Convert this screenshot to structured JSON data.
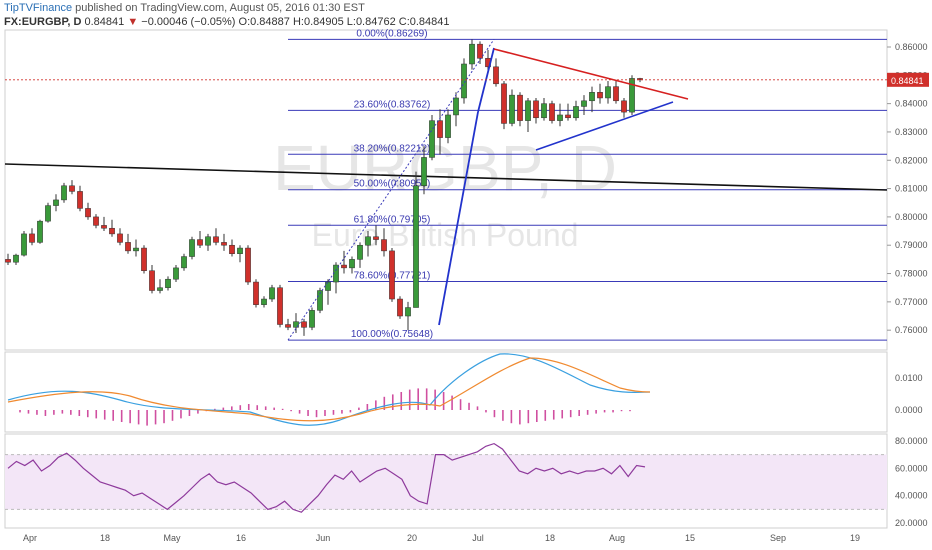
{
  "header": {
    "brand": "TipTVFinance",
    "published": "published on TradingView.com, August 05, 2016 01:30 EST",
    "symbol": "FX:EURGBP, D",
    "last": "0.84841",
    "arrow": "▼",
    "change": "−0.00046 (−0.05%)",
    "ohlc": "O:0.84887 H:0.84905 L:0.84762 C:0.84841"
  },
  "watermark": {
    "symbol": "EURGBP, D",
    "name": "Euro British Pound"
  },
  "price_label": "0.84841",
  "chart_data": [
    {
      "type": "candlestick",
      "ylim": [
        0.753,
        0.866
      ],
      "y_ticks": [
        "0.86000",
        "0.85000",
        "0.84000",
        "0.83000",
        "0.82000",
        "0.81000",
        "0.80000",
        "0.79000",
        "0.78000",
        "0.77000",
        "0.76000"
      ],
      "x_ticks": [
        "Apr",
        "18",
        "May",
        "16",
        "Jun",
        "20",
        "Jul",
        "18",
        "Aug",
        "15",
        "Sep",
        "19"
      ],
      "fib_levels": [
        {
          "label": "0.00%(0.86269)",
          "value": 0.86269
        },
        {
          "label": "23.60%(0.83762)",
          "value": 0.83762
        },
        {
          "label": "38.20%(0.82212)",
          "value": 0.82212
        },
        {
          "label": "50.00%(0.80959)",
          "value": 0.80959
        },
        {
          "label": "61.80%(0.79705)",
          "value": 0.79705
        },
        {
          "label": "78.60%(0.77721)",
          "value": 0.77721
        },
        {
          "label": "100.00%(0.75648)",
          "value": 0.75648
        }
      ],
      "candles": [
        [
          0.785,
          0.787,
          0.783,
          0.784
        ],
        [
          0.784,
          0.787,
          0.783,
          0.7865
        ],
        [
          0.7865,
          0.795,
          0.786,
          0.794
        ],
        [
          0.794,
          0.796,
          0.79,
          0.791
        ],
        [
          0.791,
          0.799,
          0.7905,
          0.7985
        ],
        [
          0.7985,
          0.805,
          0.798,
          0.804
        ],
        [
          0.804,
          0.808,
          0.802,
          0.806
        ],
        [
          0.806,
          0.812,
          0.805,
          0.811
        ],
        [
          0.811,
          0.813,
          0.808,
          0.809
        ],
        [
          0.809,
          0.811,
          0.802,
          0.803
        ],
        [
          0.803,
          0.805,
          0.799,
          0.8
        ],
        [
          0.8,
          0.801,
          0.796,
          0.797
        ],
        [
          0.797,
          0.8,
          0.795,
          0.796
        ],
        [
          0.796,
          0.799,
          0.793,
          0.794
        ],
        [
          0.794,
          0.796,
          0.79,
          0.791
        ],
        [
          0.791,
          0.794,
          0.787,
          0.788
        ],
        [
          0.788,
          0.792,
          0.786,
          0.789
        ],
        [
          0.789,
          0.79,
          0.78,
          0.781
        ],
        [
          0.781,
          0.783,
          0.773,
          0.774
        ],
        [
          0.774,
          0.778,
          0.773,
          0.775
        ],
        [
          0.775,
          0.779,
          0.774,
          0.778
        ],
        [
          0.778,
          0.783,
          0.777,
          0.782
        ],
        [
          0.782,
          0.787,
          0.781,
          0.786
        ],
        [
          0.786,
          0.793,
          0.785,
          0.792
        ],
        [
          0.792,
          0.795,
          0.789,
          0.79
        ],
        [
          0.79,
          0.794,
          0.788,
          0.793
        ],
        [
          0.793,
          0.796,
          0.79,
          0.791
        ],
        [
          0.791,
          0.794,
          0.788,
          0.79
        ],
        [
          0.79,
          0.792,
          0.786,
          0.787
        ],
        [
          0.787,
          0.79,
          0.784,
          0.789
        ],
        [
          0.789,
          0.79,
          0.776,
          0.777
        ],
        [
          0.777,
          0.778,
          0.768,
          0.769
        ],
        [
          0.769,
          0.772,
          0.768,
          0.771
        ],
        [
          0.771,
          0.776,
          0.77,
          0.775
        ],
        [
          0.775,
          0.776,
          0.761,
          0.762
        ],
        [
          0.762,
          0.764,
          0.76,
          0.761
        ],
        [
          0.761,
          0.766,
          0.759,
          0.763
        ],
        [
          0.763,
          0.764,
          0.758,
          0.761
        ],
        [
          0.761,
          0.768,
          0.76,
          0.767
        ],
        [
          0.767,
          0.775,
          0.766,
          0.774
        ],
        [
          0.774,
          0.778,
          0.769,
          0.777
        ],
        [
          0.777,
          0.784,
          0.773,
          0.783
        ],
        [
          0.783,
          0.788,
          0.78,
          0.782
        ],
        [
          0.782,
          0.786,
          0.78,
          0.785
        ],
        [
          0.785,
          0.791,
          0.782,
          0.79
        ],
        [
          0.79,
          0.795,
          0.786,
          0.793
        ],
        [
          0.793,
          0.797,
          0.79,
          0.792
        ],
        [
          0.792,
          0.796,
          0.786,
          0.788
        ],
        [
          0.788,
          0.789,
          0.77,
          0.771
        ],
        [
          0.771,
          0.772,
          0.764,
          0.765
        ],
        [
          0.765,
          0.77,
          0.76,
          0.768
        ],
        [
          0.768,
          0.816,
          0.768,
          0.811
        ],
        [
          0.811,
          0.825,
          0.808,
          0.821
        ],
        [
          0.821,
          0.836,
          0.82,
          0.834
        ],
        [
          0.834,
          0.838,
          0.822,
          0.828
        ],
        [
          0.828,
          0.838,
          0.826,
          0.836
        ],
        [
          0.836,
          0.844,
          0.832,
          0.842
        ],
        [
          0.842,
          0.856,
          0.84,
          0.854
        ],
        [
          0.854,
          0.8627,
          0.852,
          0.861
        ],
        [
          0.861,
          0.862,
          0.854,
          0.856
        ],
        [
          0.856,
          0.859,
          0.851,
          0.853
        ],
        [
          0.853,
          0.856,
          0.846,
          0.847
        ],
        [
          0.847,
          0.848,
          0.831,
          0.833
        ],
        [
          0.833,
          0.845,
          0.832,
          0.843
        ],
        [
          0.843,
          0.844,
          0.832,
          0.834
        ],
        [
          0.834,
          0.842,
          0.83,
          0.841
        ],
        [
          0.841,
          0.842,
          0.833,
          0.835
        ],
        [
          0.835,
          0.842,
          0.834,
          0.84
        ],
        [
          0.84,
          0.841,
          0.833,
          0.834
        ],
        [
          0.834,
          0.84,
          0.832,
          0.836
        ],
        [
          0.836,
          0.84,
          0.834,
          0.835
        ],
        [
          0.835,
          0.841,
          0.834,
          0.839
        ],
        [
          0.839,
          0.843,
          0.836,
          0.841
        ],
        [
          0.841,
          0.846,
          0.837,
          0.844
        ],
        [
          0.844,
          0.847,
          0.84,
          0.842
        ],
        [
          0.842,
          0.848,
          0.84,
          0.846
        ],
        [
          0.846,
          0.848,
          0.84,
          0.841
        ],
        [
          0.841,
          0.842,
          0.835,
          0.837
        ],
        [
          0.837,
          0.85,
          0.836,
          0.8489
        ],
        [
          0.8489,
          0.8491,
          0.8476,
          0.8484
        ]
      ],
      "macd_ticks": [
        "0.0100",
        "0.0000"
      ],
      "rsi_ticks": [
        "80.0000",
        "60.0000",
        "40.0000",
        "20.0000"
      ]
    }
  ]
}
